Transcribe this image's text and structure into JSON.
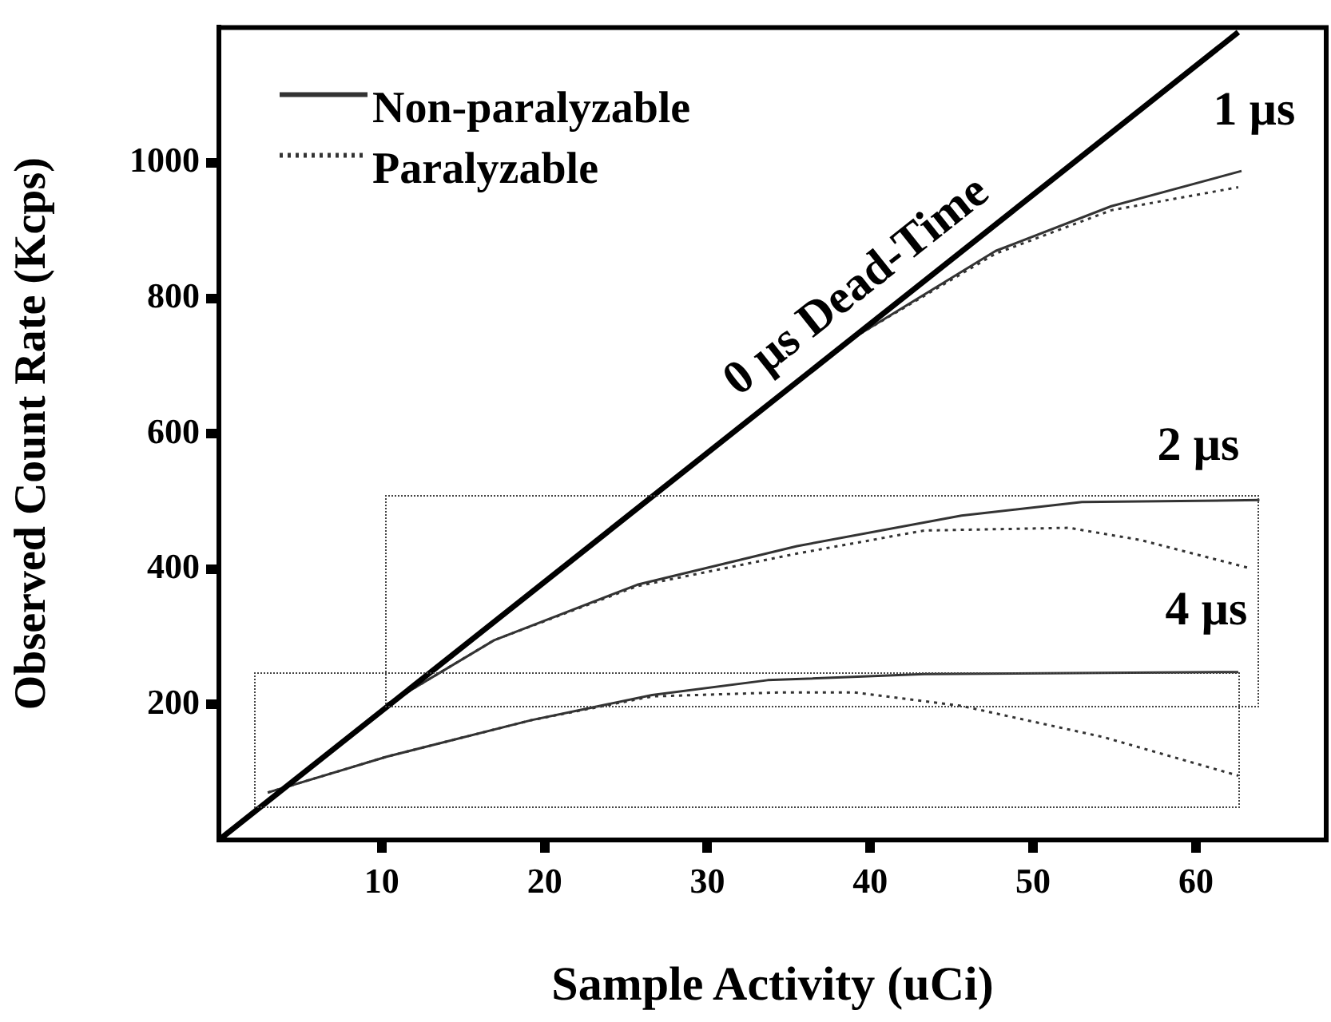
{
  "chart_data": {
    "type": "line",
    "xlabel": "Sample Activity (uCi)",
    "ylabel": "Observed Count Rate (Kcps)",
    "xlim": [
      0,
      68
    ],
    "xticks": [
      10,
      20,
      30,
      40,
      50,
      60
    ],
    "ylim": [
      0,
      1200
    ],
    "yticks": [
      200,
      400,
      600,
      800,
      1000
    ],
    "grid": false,
    "legend": "top left",
    "series": [
      {
        "color": "#000000",
        "line_style": "solid",
        "x": [
          0,
          62.6
        ],
        "values": [
          0,
          1193
        ]
      },
      {
        "name": "Non-paralyzable",
        "color": "#333333",
        "line_style": "solid",
        "x": [
          39.4,
          47.7,
          54.8,
          62.8
        ],
        "values": [
          748,
          870,
          936,
          988
        ]
      },
      {
        "name": "Paralyzable",
        "color": "#333333",
        "line_style": "dotted",
        "x": [
          39.4,
          47.7,
          54.8,
          62.6
        ],
        "values": [
          748,
          866,
          930,
          964
        ]
      },
      {
        "color": "#333333",
        "line_style": "solid",
        "x": [
          10.3,
          16.9,
          25.7,
          35.5,
          45.6,
          53,
          63.9
        ],
        "values": [
          200,
          295,
          377,
          434,
          479,
          499,
          502
        ]
      },
      {
        "color": "#333333",
        "line_style": "dotted",
        "x": [
          10.3,
          16.9,
          25.7,
          35.5,
          43.3,
          52.2,
          56.6,
          63.2
        ],
        "values": [
          200,
          295,
          375,
          423,
          457,
          461,
          443,
          402
        ]
      },
      {
        "color": "#333333",
        "line_style": "solid",
        "x": [
          3,
          10.3,
          19.2,
          26.6,
          33.7,
          43.3,
          62.6
        ],
        "values": [
          70,
          123,
          177,
          214,
          236,
          245,
          248
        ]
      },
      {
        "color": "#333333",
        "line_style": "dotted",
        "x": [
          3,
          10.3,
          19.2,
          26.6,
          34.6,
          39,
          45.6,
          54.3,
          62.6
        ],
        "values": [
          70,
          123,
          177,
          212,
          218,
          218,
          198,
          152,
          95
        ]
      }
    ],
    "annotations": [
      {
        "text": "0 µs Dead-Time",
        "x": 40.6,
        "y": 774
      },
      "1 µs",
      "2 µs",
      "4 µs"
    ]
  }
}
